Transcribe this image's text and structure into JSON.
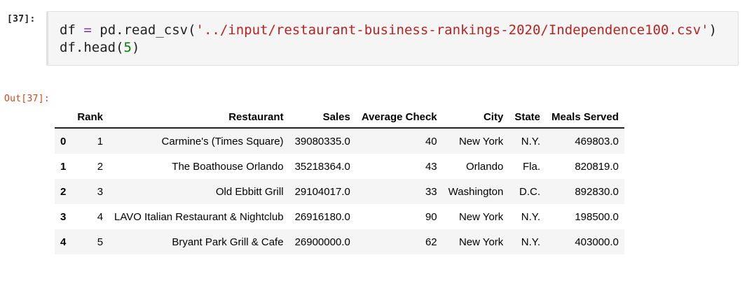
{
  "input_cell": {
    "prompt": "[37]:",
    "line1_var": "df",
    "line1_op": "=",
    "line1_call": "pd.read_csv(",
    "line1_str": "'../input/restaurant-business-rankings-2020/Independence100.csv'",
    "line1_end": ")",
    "line2_call": "df.head(",
    "line2_num": "5",
    "line2_end": ")"
  },
  "output_cell": {
    "prompt": "Out[37]:"
  },
  "table": {
    "columns": [
      "",
      "Rank",
      "Restaurant",
      "Sales",
      "Average Check",
      "City",
      "State",
      "Meals Served"
    ],
    "rows": [
      [
        "0",
        "1",
        "Carmine's (Times Square)",
        "39080335.0",
        "40",
        "New York",
        "N.Y.",
        "469803.0"
      ],
      [
        "1",
        "2",
        "The Boathouse Orlando",
        "35218364.0",
        "43",
        "Orlando",
        "Fla.",
        "820819.0"
      ],
      [
        "2",
        "3",
        "Old Ebbitt Grill",
        "29104017.0",
        "33",
        "Washington",
        "D.C.",
        "892830.0"
      ],
      [
        "3",
        "4",
        "LAVO Italian Restaurant & Nightclub",
        "26916180.0",
        "90",
        "New York",
        "N.Y.",
        "198500.0"
      ],
      [
        "4",
        "5",
        "Bryant Park Grill & Cafe",
        "26900000.0",
        "62",
        "New York",
        "N.Y.",
        "403000.0"
      ]
    ]
  }
}
